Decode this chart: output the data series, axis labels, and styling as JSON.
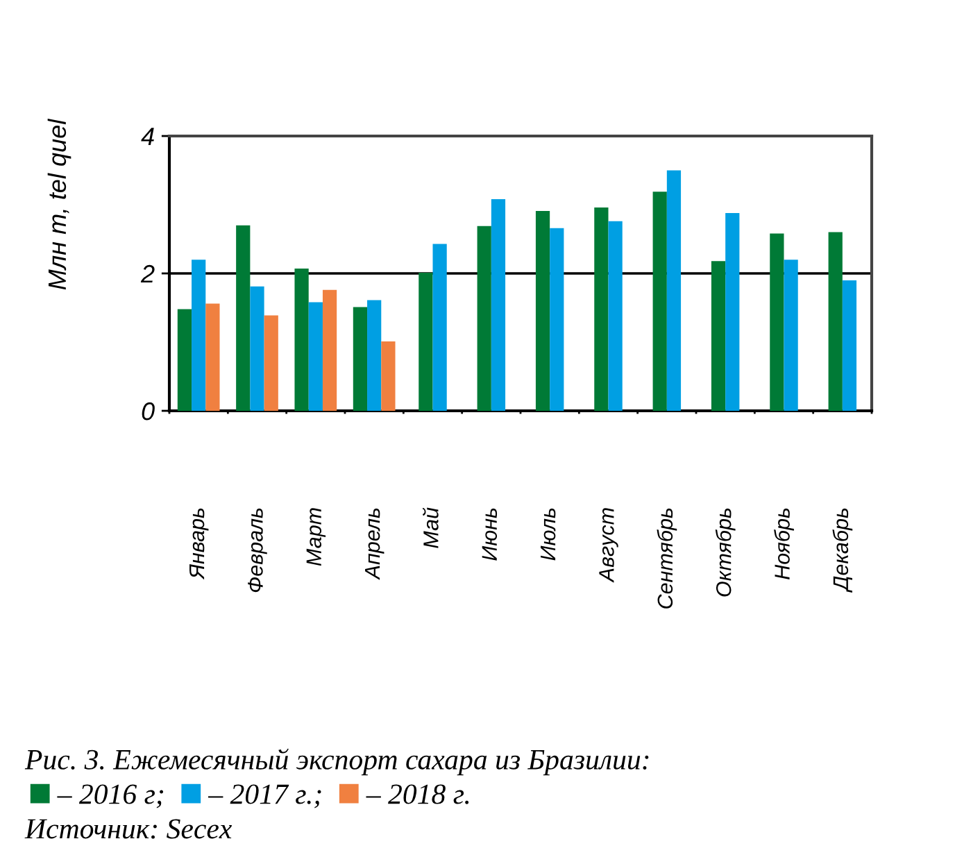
{
  "chart_data": {
    "type": "bar",
    "ylabel": "Млн т, tel quel",
    "categories": [
      "Январь",
      "Февраль",
      "Март",
      "Апрель",
      "Май",
      "Июнь",
      "Июль",
      "Август",
      "Сентябрь",
      "Октябрь",
      "Ноябрь",
      "Декабрь"
    ],
    "series": [
      {
        "name": "– 2016 г;",
        "color": "#007a36",
        "values": [
          1.48,
          2.7,
          2.07,
          1.51,
          2.01,
          2.69,
          2.91,
          2.96,
          3.19,
          2.18,
          2.58,
          2.6
        ]
      },
      {
        "name": "– 2017 г.;",
        "color": "#009fe3",
        "values": [
          2.2,
          1.81,
          1.58,
          1.61,
          2.43,
          3.08,
          2.66,
          2.76,
          3.5,
          2.88,
          2.2,
          1.9
        ]
      },
      {
        "name": "– 2018 г.",
        "color": "#f08040",
        "values": [
          1.56,
          1.39,
          1.76,
          1.01,
          null,
          null,
          null,
          null,
          null,
          null,
          null,
          null
        ]
      }
    ],
    "ylim": [
      0,
      4
    ],
    "yticks": [
      0,
      2,
      4
    ],
    "grid": "y",
    "legend": "bottom left",
    "annotations": [
      "Рис. 3. Ежемесячный экспорт сахара из Бразилии:",
      "Источник: Secex"
    ]
  }
}
